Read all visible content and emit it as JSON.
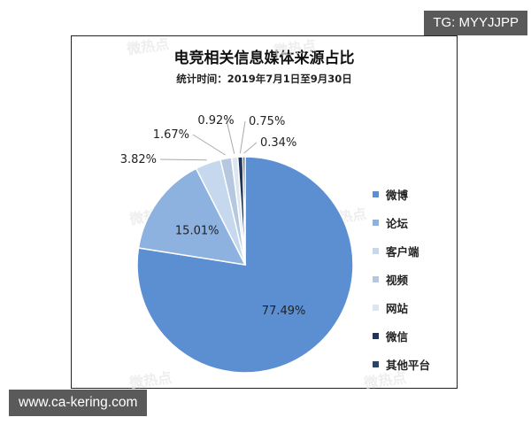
{
  "overlay": {
    "top_right_tag": "TG: MYYJJPP",
    "bottom_left_tag": "www.ca-kering.com",
    "watermark": "微热点"
  },
  "chart_data": {
    "type": "pie",
    "title": "电竞相关信息媒体来源占比",
    "subtitle": "统计时间：2019年7月1日至9月30日",
    "categories": [
      "微博",
      "论坛",
      "客户端",
      "视频",
      "网站",
      "微信",
      "其他平台"
    ],
    "values": [
      77.49,
      15.01,
      3.82,
      1.67,
      0.92,
      0.75,
      0.34
    ],
    "labels": [
      "77.49%",
      "15.01%",
      "3.82%",
      "1.67%",
      "0.92%",
      "0.75%",
      "0.34%"
    ],
    "colors": [
      "#5b8fd1",
      "#8db2e0",
      "#c5d8ee",
      "#b5c8df",
      "#dde6f0",
      "#1f3557",
      "#2a4468"
    ],
    "legend_position": "right",
    "start_angle": "12 o'clock, clockwise"
  }
}
